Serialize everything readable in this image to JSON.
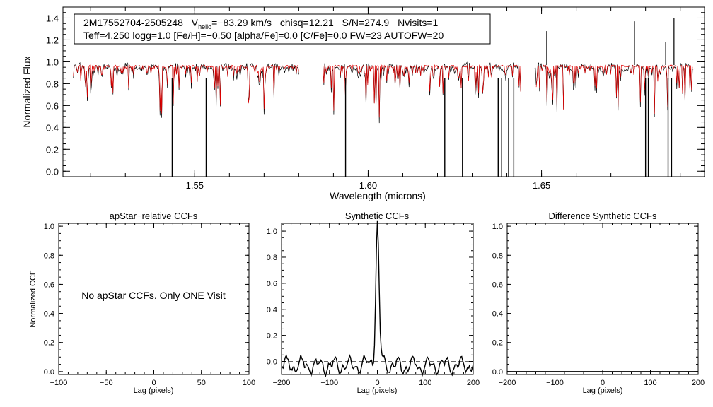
{
  "chart_data": [
    {
      "type": "line",
      "id": "spectrum",
      "header": {
        "star_id": "2M17552704-2505248",
        "v_label": "V",
        "v_sub": "helio",
        "v_value": "=−83.29 km/s",
        "chisq": "chisq=12.21",
        "snr": "S/N=274.9",
        "nvisits": "Nvisits=1",
        "params": "Teff=4,250 logg=1.0 [Fe/H]=−0.50 [alpha/Fe]=0.0 [C/Fe]=0.0 FW=23 AUTOFW=20"
      },
      "xlabel": "Wavelength (microns)",
      "ylabel": "Normalized Flux",
      "xlim": [
        1.512,
        1.697
      ],
      "ylim": [
        -0.05,
        1.5
      ],
      "xticks": [
        1.55,
        1.6,
        1.65
      ],
      "xtick_labels": [
        "1.55",
        "1.60",
        "1.65"
      ],
      "yticks": [
        0.0,
        0.2,
        0.4,
        0.6,
        0.8,
        1.0,
        1.2,
        1.4
      ],
      "ytick_labels": [
        "0.0",
        "0.2",
        "0.4",
        "0.6",
        "0.8",
        "1.0",
        "1.2",
        "1.4"
      ],
      "chips": [
        [
          1.515,
          1.58
        ],
        [
          1.587,
          1.644
        ],
        [
          1.648,
          1.694
        ]
      ],
      "series": [
        {
          "name": "observed",
          "color": "#000000",
          "continuum": 0.95
        },
        {
          "name": "model",
          "color": "#dd0000",
          "continuum": 0.96
        }
      ],
      "strong_lines": [
        {
          "x": 1.5435,
          "y": -0.05
        },
        {
          "x": 1.5533,
          "y": -0.05
        },
        {
          "x": 1.5935,
          "y": -0.05
        },
        {
          "x": 1.6221,
          "y": -0.05
        },
        {
          "x": 1.6272,
          "y": -0.05
        },
        {
          "x": 1.6375,
          "y": -0.05
        },
        {
          "x": 1.6385,
          "y": -0.05
        },
        {
          "x": 1.6405,
          "y": -0.05
        },
        {
          "x": 1.642,
          "y": -0.05
        },
        {
          "x": 1.68,
          "y": -0.05
        },
        {
          "x": 1.6808,
          "y": -0.05
        },
        {
          "x": 1.6865,
          "y": -0.05
        },
        {
          "x": 1.6875,
          "y": -0.05
        }
      ],
      "emission_spikes": [
        {
          "x": 1.6515,
          "y": 1.28
        },
        {
          "x": 1.6768,
          "y": 1.37
        },
        {
          "x": 1.6858,
          "y": 1.18
        },
        {
          "x": 1.6882,
          "y": 1.4
        }
      ]
    },
    {
      "type": "line",
      "id": "apstar_ccf",
      "title": "apStar−relative CCFs",
      "xlabel": "Lag (pixels)",
      "ylabel": "Normalized CCF",
      "xlim": [
        -100,
        100
      ],
      "ylim": [
        -0.02,
        1.02
      ],
      "xticks": [
        -100,
        -50,
        0,
        50,
        100
      ],
      "xtick_labels": [
        "−100",
        "−50",
        "0",
        "50",
        "100"
      ],
      "yticks": [
        0.0,
        0.2,
        0.4,
        0.6,
        0.8,
        1.0
      ],
      "ytick_labels": [
        "0.0",
        "0.2",
        "0.4",
        "0.6",
        "0.8",
        "1.0"
      ],
      "annotation": "No apStar CCFs.  Only ONE Visit"
    },
    {
      "type": "line",
      "id": "synthetic_ccf",
      "title": "Synthetic CCFs",
      "xlabel": "Lag (pixels)",
      "xlim": [
        -200,
        200
      ],
      "ylim": [
        -0.1,
        1.06
      ],
      "xticks": [
        -200,
        -100,
        0,
        100,
        200
      ],
      "xtick_labels": [
        "−200",
        "−100",
        "0",
        "100",
        "200"
      ],
      "yticks": [
        0.0,
        0.2,
        0.4,
        0.6,
        0.8,
        1.0
      ],
      "ytick_labels": [
        "0.0",
        "0.2",
        "0.4",
        "0.6",
        "0.8",
        "1.0"
      ],
      "peak": {
        "x": 0,
        "y": 1.0
      },
      "baseline": 0.0,
      "noise_level": -0.03
    },
    {
      "type": "line",
      "id": "diff_ccf",
      "title": "Difference Synthetic CCFs",
      "xlabel": "Lag (pixels)",
      "xlim": [
        -200,
        200
      ],
      "ylim": [
        -0.02,
        1.02
      ],
      "xticks": [
        -200,
        -100,
        0,
        100,
        200
      ],
      "xtick_labels": [
        "−200",
        "−100",
        "0",
        "100",
        "200"
      ],
      "yticks": [
        0.0,
        0.2,
        0.4,
        0.6,
        0.8,
        1.0
      ],
      "ytick_labels": [
        "0.0",
        "0.2",
        "0.4",
        "0.6",
        "0.8",
        "1.0"
      ],
      "values": "flat at 0.0"
    }
  ]
}
